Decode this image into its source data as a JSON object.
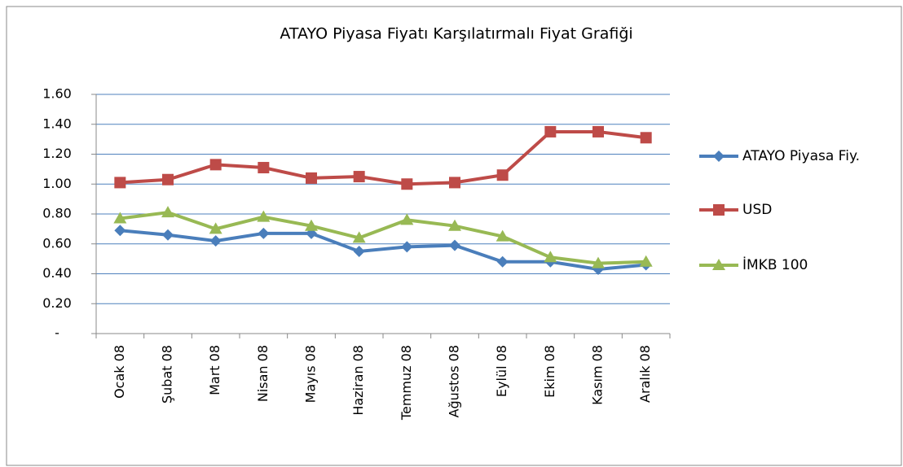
{
  "chart_data": {
    "type": "line",
    "title": "ATAYO Piyasa Fiyatı Karşılatırmalı Fiyat Grafiği",
    "categories": [
      "Ocak 08",
      "Şubat 08",
      "Mart 08",
      "Nisan 08",
      "Mayıs 08",
      "Haziran 08",
      "Temmuz 08",
      "Ağustos 08",
      "Eylül 08",
      "Ekim 08",
      "Kasım 08",
      "Aralık 08"
    ],
    "series": [
      {
        "name": "ATAYO Piyasa Fiy.",
        "color": "#4a7ebb",
        "marker": "diamond",
        "values": [
          0.69,
          0.66,
          0.62,
          0.67,
          0.67,
          0.55,
          0.58,
          0.59,
          0.48,
          0.48,
          0.43,
          0.46
        ]
      },
      {
        "name": "USD",
        "color": "#be4b48",
        "marker": "square",
        "values": [
          1.01,
          1.03,
          1.13,
          1.11,
          1.04,
          1.05,
          1.0,
          1.01,
          1.06,
          1.35,
          1.35,
          1.31
        ]
      },
      {
        "name": "İMKB 100",
        "color": "#98b954",
        "marker": "triangle",
        "values": [
          0.77,
          0.81,
          0.7,
          0.78,
          0.72,
          0.64,
          0.76,
          0.72,
          0.65,
          0.51,
          0.47,
          0.48
        ]
      }
    ],
    "ylim": [
      0,
      1.6
    ],
    "yticks": [
      {
        "value": 0,
        "label": "-"
      },
      {
        "value": 0.2,
        "label": "0.20"
      },
      {
        "value": 0.4,
        "label": "0.40"
      },
      {
        "value": 0.6,
        "label": "0.60"
      },
      {
        "value": 0.8,
        "label": "0.80"
      },
      {
        "value": 1.0,
        "label": "1.00"
      },
      {
        "value": 1.2,
        "label": "1.20"
      },
      {
        "value": 1.4,
        "label": "1.40"
      },
      {
        "value": 1.6,
        "label": "1.60"
      }
    ],
    "grid": true,
    "legend": "right"
  }
}
